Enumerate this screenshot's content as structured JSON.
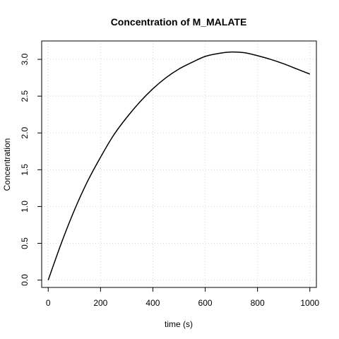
{
  "chart_data": {
    "type": "line",
    "title": "Concentration of M_MALATE",
    "xlabel": "time (s)",
    "ylabel": "Concentration",
    "xlim": [
      -25,
      1025
    ],
    "ylim": [
      -0.1,
      3.25
    ],
    "x_ticks": [
      0,
      200,
      400,
      600,
      800,
      1000
    ],
    "y_ticks": [
      0.0,
      0.5,
      1.0,
      1.5,
      2.0,
      2.5,
      3.0
    ],
    "x_tick_labels": [
      "0",
      "200",
      "400",
      "600",
      "800",
      "1000"
    ],
    "y_tick_labels": [
      "0.0",
      "0.5",
      "1.0",
      "1.5",
      "2.0",
      "2.5",
      "3.0"
    ],
    "grid": true,
    "series": [
      {
        "color": "#000000",
        "x": [
          0,
          50,
          100,
          150,
          200,
          250,
          300,
          350,
          400,
          450,
          500,
          550,
          600,
          650,
          700,
          750,
          800,
          850,
          900,
          950,
          1000
        ],
        "y": [
          0.0,
          0.5,
          0.95,
          1.34,
          1.67,
          1.97,
          2.21,
          2.42,
          2.6,
          2.75,
          2.87,
          2.96,
          3.04,
          3.08,
          3.1,
          3.09,
          3.05,
          3.0,
          2.94,
          2.87,
          2.8
        ]
      }
    ]
  }
}
